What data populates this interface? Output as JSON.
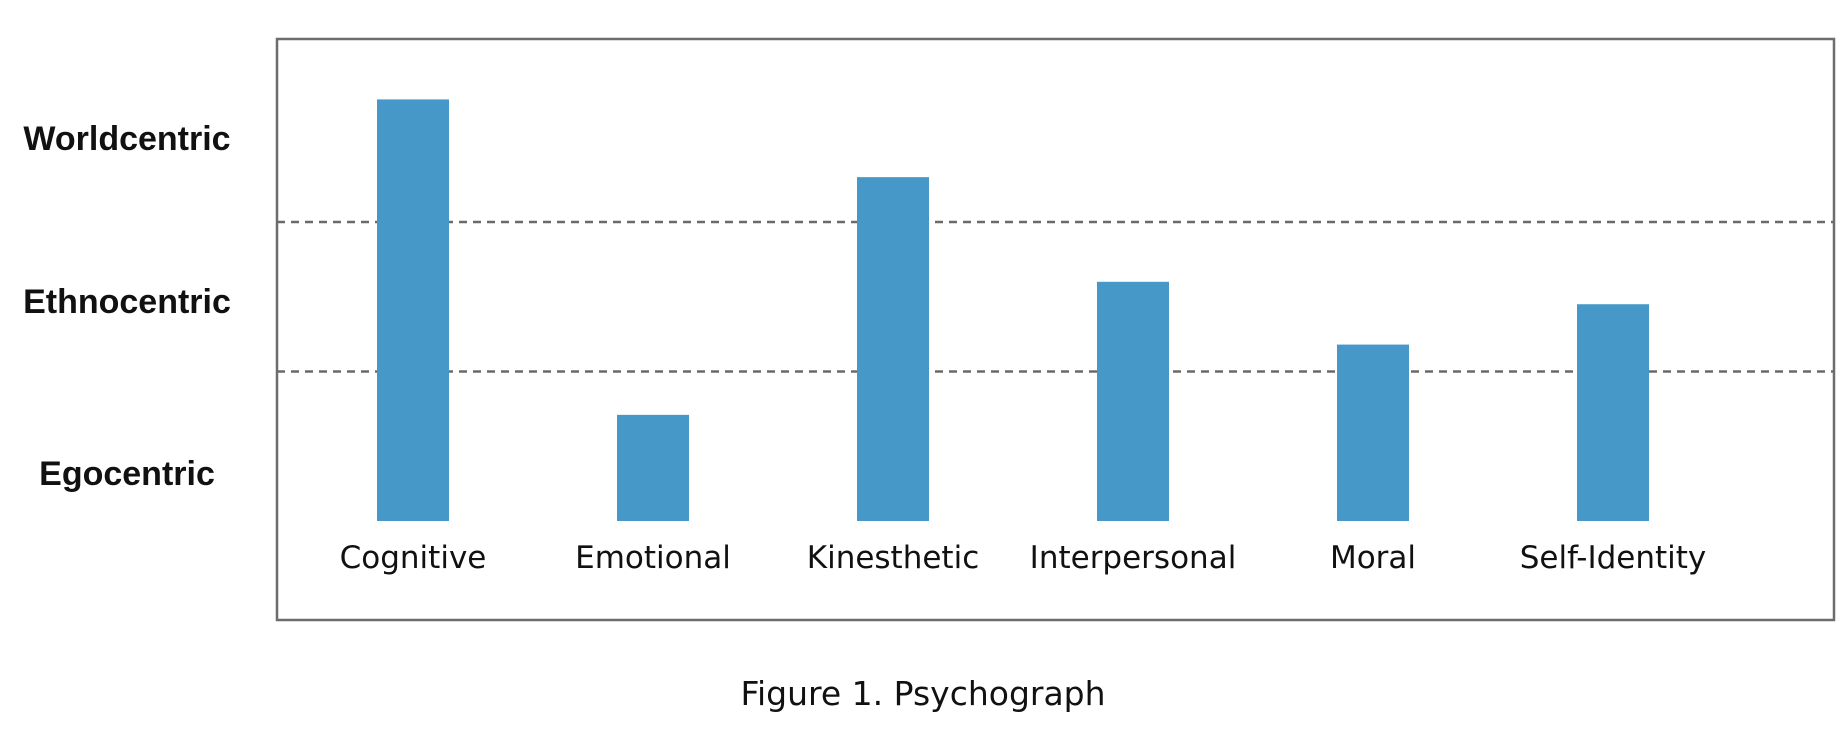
{
  "chart_data": {
    "type": "bar",
    "categories": [
      "Cognitive",
      "Emotional",
      "Kinesthetic",
      "Interpersonal",
      "Moral",
      "Self-Identity"
    ],
    "values": [
      2.82,
      0.71,
      2.3,
      1.6,
      1.18,
      1.45
    ],
    "ylim": [
      0,
      3
    ],
    "y_levels": [
      "Egocentric",
      "Ethnocentric",
      "Worldcentric"
    ],
    "level_boundaries": [
      1,
      2
    ],
    "grid": false,
    "legend": "none",
    "bar_color": "#4598c7",
    "caption": "Figure 1. Psychograph"
  }
}
